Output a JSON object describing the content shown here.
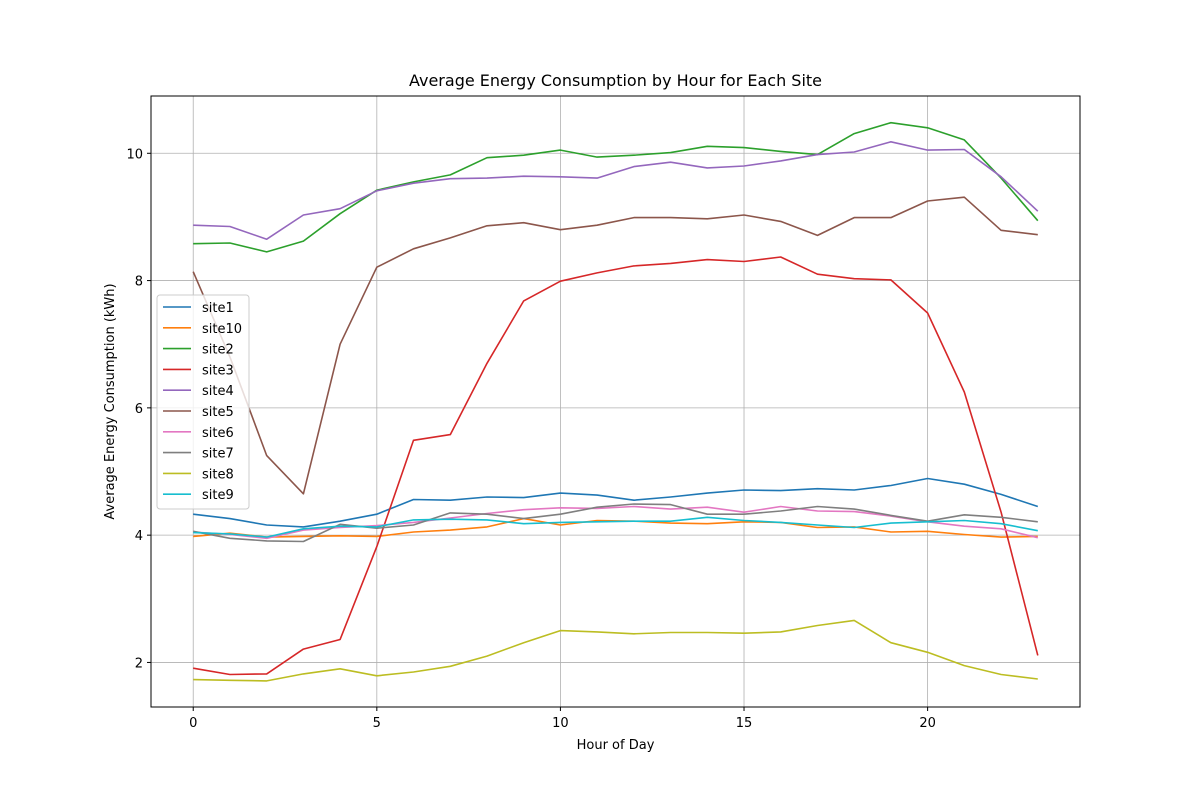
{
  "chart_data": {
    "type": "line",
    "title": "Average Energy Consumption by Hour for Each Site",
    "xlabel": "Hour of Day",
    "ylabel": "Average Energy Consumption (kWh)",
    "xlim": [
      -1.15,
      24.15
    ],
    "ylim": [
      1.3,
      10.9
    ],
    "xticks": [
      0,
      5,
      10,
      15,
      20
    ],
    "yticks": [
      2,
      4,
      6,
      8,
      10
    ],
    "grid": true,
    "legend_position": "center-left",
    "x": [
      0,
      1,
      2,
      3,
      4,
      5,
      6,
      7,
      8,
      9,
      10,
      11,
      12,
      13,
      14,
      15,
      16,
      17,
      18,
      19,
      20,
      21,
      22,
      23
    ],
    "series": [
      {
        "name": "site1",
        "color": "#1f77b4",
        "values": [
          4.33,
          4.26,
          4.16,
          4.13,
          4.22,
          4.33,
          4.56,
          4.55,
          4.6,
          4.59,
          4.66,
          4.63,
          4.55,
          4.6,
          4.66,
          4.71,
          4.7,
          4.73,
          4.71,
          4.78,
          4.89,
          4.8,
          4.64,
          4.45
        ]
      },
      {
        "name": "site10",
        "color": "#ff7f0e",
        "values": [
          3.98,
          4.03,
          3.97,
          3.98,
          3.99,
          3.98,
          4.05,
          4.08,
          4.13,
          4.26,
          4.16,
          4.23,
          4.22,
          4.19,
          4.18,
          4.21,
          4.2,
          4.12,
          4.13,
          4.05,
          4.06,
          4.01,
          3.97,
          3.98
        ]
      },
      {
        "name": "site2",
        "color": "#2ca02c",
        "values": [
          8.58,
          8.59,
          8.45,
          8.62,
          9.05,
          9.42,
          9.55,
          9.66,
          9.93,
          9.97,
          10.05,
          9.94,
          9.97,
          10.01,
          10.11,
          10.09,
          10.03,
          9.98,
          10.31,
          10.48,
          10.4,
          10.21,
          9.61,
          8.94
        ]
      },
      {
        "name": "site3",
        "color": "#d62728",
        "values": [
          1.91,
          1.81,
          1.82,
          2.21,
          2.36,
          3.82,
          5.49,
          5.58,
          6.7,
          7.68,
          7.99,
          8.12,
          8.23,
          8.27,
          8.33,
          8.3,
          8.37,
          8.1,
          8.03,
          8.01,
          7.49,
          6.25,
          4.36,
          2.11
        ]
      },
      {
        "name": "site4",
        "color": "#9467bd",
        "values": [
          8.87,
          8.85,
          8.65,
          9.03,
          9.13,
          9.41,
          9.53,
          9.6,
          9.61,
          9.64,
          9.63,
          9.61,
          9.79,
          9.86,
          9.77,
          9.8,
          9.88,
          9.98,
          10.02,
          10.18,
          10.05,
          10.06,
          9.63,
          9.09
        ]
      },
      {
        "name": "site5",
        "color": "#8c564b",
        "values": [
          8.14,
          6.8,
          5.25,
          4.65,
          7.0,
          8.21,
          8.5,
          8.67,
          8.86,
          8.91,
          8.8,
          8.87,
          8.99,
          8.99,
          8.97,
          9.03,
          8.93,
          8.71,
          8.99,
          8.99,
          9.25,
          9.31,
          8.79,
          8.72
        ]
      },
      {
        "name": "site6",
        "color": "#e377c2",
        "values": [
          4.05,
          4.01,
          3.95,
          4.08,
          4.12,
          4.15,
          4.2,
          4.27,
          4.34,
          4.4,
          4.43,
          4.42,
          4.45,
          4.41,
          4.44,
          4.36,
          4.45,
          4.38,
          4.37,
          4.3,
          4.21,
          4.14,
          4.1,
          3.96
        ]
      },
      {
        "name": "site7",
        "color": "#7f7f7f",
        "values": [
          4.06,
          3.95,
          3.91,
          3.9,
          4.17,
          4.11,
          4.16,
          4.35,
          4.33,
          4.26,
          4.33,
          4.44,
          4.49,
          4.48,
          4.33,
          4.33,
          4.38,
          4.45,
          4.41,
          4.31,
          4.22,
          4.32,
          4.28,
          4.21
        ]
      },
      {
        "name": "site8",
        "color": "#bcbd22",
        "values": [
          1.73,
          1.72,
          1.71,
          1.82,
          1.9,
          1.79,
          1.85,
          1.94,
          2.1,
          2.31,
          2.5,
          2.48,
          2.45,
          2.47,
          2.47,
          2.46,
          2.48,
          2.58,
          2.66,
          2.31,
          2.16,
          1.95,
          1.81,
          1.74
        ]
      },
      {
        "name": "site9",
        "color": "#17becf",
        "values": [
          4.04,
          4.02,
          3.97,
          4.1,
          4.14,
          4.13,
          4.24,
          4.25,
          4.24,
          4.18,
          4.2,
          4.21,
          4.22,
          4.22,
          4.28,
          4.23,
          4.2,
          4.16,
          4.12,
          4.19,
          4.21,
          4.23,
          4.18,
          4.07
        ]
      }
    ]
  }
}
